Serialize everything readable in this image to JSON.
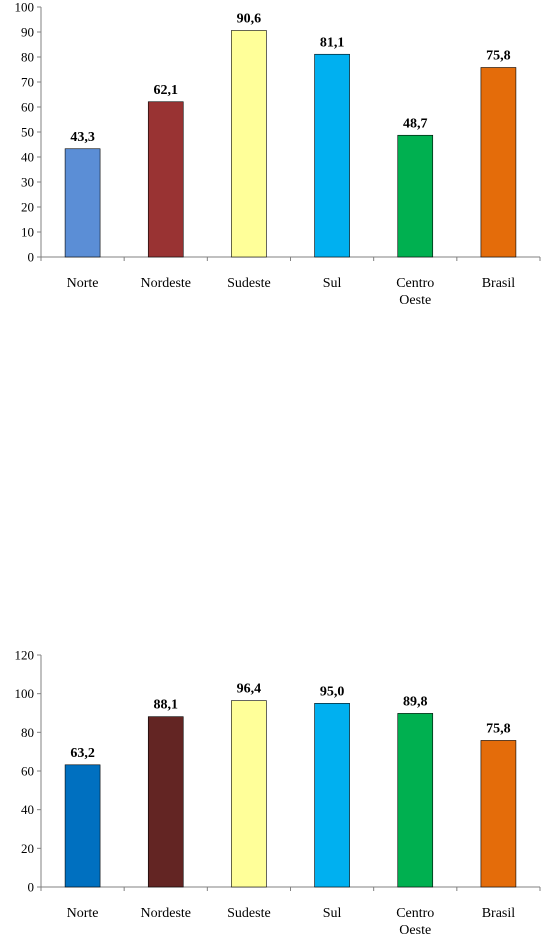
{
  "chart_data": [
    {
      "type": "bar",
      "categories": [
        [
          "Norte"
        ],
        [
          "Nordeste"
        ],
        [
          "Sudeste"
        ],
        [
          "Sul"
        ],
        [
          "Centro",
          "Oeste"
        ],
        [
          "Brasil"
        ]
      ],
      "values": [
        43.3,
        62.1,
        90.6,
        81.1,
        48.7,
        75.8
      ],
      "value_labels": [
        "43,3",
        "62,1",
        "90,6",
        "81,1",
        "48,7",
        "75,8"
      ],
      "colors": [
        "#5B8ED6",
        "#993333",
        "#FFFF99",
        "#00B0F0",
        "#00B050",
        "#E46C0A"
      ],
      "ylim": [
        0,
        100
      ],
      "yticks": [
        0,
        10,
        20,
        30,
        40,
        50,
        60,
        70,
        80,
        90,
        100
      ],
      "grid": false,
      "legend": "none"
    },
    {
      "type": "bar",
      "categories": [
        [
          "Norte"
        ],
        [
          "Nordeste"
        ],
        [
          "Sudeste"
        ],
        [
          "Sul"
        ],
        [
          "Centro",
          "Oeste"
        ],
        [
          "Brasil"
        ]
      ],
      "values": [
        63.2,
        88.1,
        96.4,
        95.0,
        89.8,
        75.8
      ],
      "value_labels": [
        "63,2",
        "88,1",
        "96,4",
        "95,0",
        "89,8",
        "75,8"
      ],
      "colors": [
        "#0070C0",
        "#632523",
        "#FFFF99",
        "#00B0F0",
        "#00B050",
        "#E46C0A"
      ],
      "ylim": [
        0,
        120
      ],
      "yticks": [
        0,
        20,
        40,
        60,
        80,
        100,
        120
      ],
      "grid": false,
      "legend": "none"
    }
  ]
}
